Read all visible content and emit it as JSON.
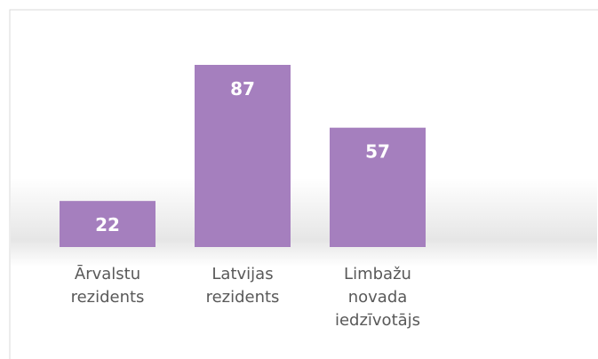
{
  "chart_data": {
    "type": "bar",
    "categories": [
      "Ārvalstu rezidents",
      "Latvijas rezidents",
      "Limbažu novada iedzīvotājs"
    ],
    "values": [
      22,
      87,
      57
    ],
    "color": "#a57fbe"
  }
}
